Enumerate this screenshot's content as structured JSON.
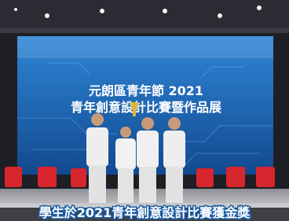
{
  "photo": {
    "banner": {
      "line1": "元朗區青年節 2021",
      "line2": "青年創意設計比賽暨作品展"
    }
  },
  "caption": "學生於2021青年創意設計比賽獲金獎"
}
